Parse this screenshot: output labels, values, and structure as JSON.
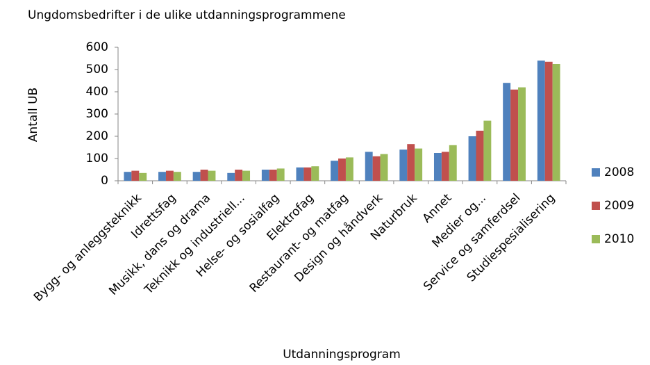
{
  "chart_data": {
    "type": "bar",
    "title": "Ungdomsbedrifter i de ulike utdanningsprogrammene",
    "x_label": "Utdanningsprogram",
    "y_label": "Antall UB",
    "categories": [
      "Bygg- og anleggsteknikk",
      "Idrettsfag",
      "Musikk, dans og drama",
      "Teknikk og industriell...",
      "Helse- og sosialfag",
      "Elektrofag",
      "Restaurant- og matfag",
      "Design og håndverk",
      "Naturbruk",
      "Annet",
      "Medier og...",
      "Service og samferdsel",
      "Studiespesialisering"
    ],
    "series": [
      {
        "name": "2008",
        "color": "#4f81bd",
        "values": [
          40,
          40,
          40,
          35,
          50,
          60,
          90,
          130,
          140,
          125,
          200,
          440,
          540
        ]
      },
      {
        "name": "2009",
        "color": "#c0504d",
        "values": [
          45,
          45,
          50,
          50,
          50,
          60,
          100,
          110,
          165,
          130,
          225,
          410,
          535
        ]
      },
      {
        "name": "2010",
        "color": "#9bbb59",
        "values": [
          35,
          40,
          45,
          45,
          55,
          65,
          105,
          120,
          145,
          160,
          270,
          420,
          525
        ]
      }
    ],
    "ylim": [
      0,
      600
    ],
    "yticks": [
      0,
      100,
      200,
      300,
      400,
      500,
      600
    ],
    "grid": false,
    "legend": "right"
  }
}
